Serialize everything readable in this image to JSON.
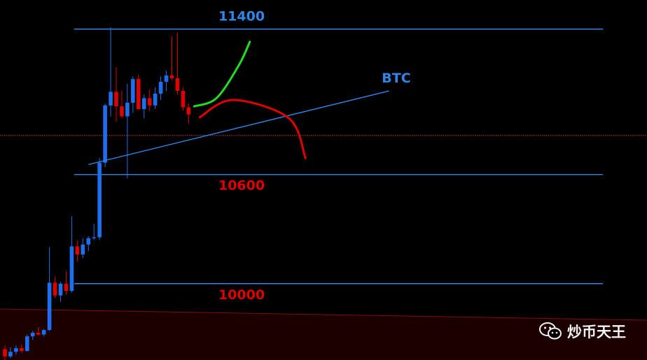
{
  "chart_data": {
    "type": "candlestick",
    "title": "BTC",
    "colors": {
      "background": "#000000",
      "up": "#1e6ff0",
      "down": "#e00000",
      "level_line": "#2f86e8",
      "trendline": "#2f86e8",
      "current_price_line": "#c0392b",
      "bull_scenario": "#22dd22",
      "bear_scenario": "#e00000",
      "title": "#2f86e8",
      "resistance_label": "#2f86e8",
      "support_label": "#e00000"
    },
    "price_range": [
      9580,
      11560
    ],
    "current_price": 10815,
    "levels": [
      {
        "price": 11400,
        "label": "11400",
        "role": "resistance"
      },
      {
        "price": 10600,
        "label": "10600",
        "role": "support"
      },
      {
        "price": 10000,
        "label": "10000",
        "role": "support"
      }
    ],
    "candles": [
      {
        "o": 9640,
        "h": 9660,
        "l": 9580,
        "c": 9600
      },
      {
        "o": 9600,
        "h": 9650,
        "l": 9590,
        "c": 9625
      },
      {
        "o": 9625,
        "h": 9660,
        "l": 9610,
        "c": 9645
      },
      {
        "o": 9645,
        "h": 9665,
        "l": 9620,
        "c": 9630
      },
      {
        "o": 9630,
        "h": 9720,
        "l": 9625,
        "c": 9710
      },
      {
        "o": 9710,
        "h": 9740,
        "l": 9690,
        "c": 9730
      },
      {
        "o": 9730,
        "h": 9760,
        "l": 9715,
        "c": 9720
      },
      {
        "o": 9720,
        "h": 9750,
        "l": 9710,
        "c": 9745
      },
      {
        "o": 9745,
        "h": 10200,
        "l": 9740,
        "c": 10005
      },
      {
        "o": 10005,
        "h": 10040,
        "l": 9920,
        "c": 9935
      },
      {
        "o": 9935,
        "h": 10010,
        "l": 9900,
        "c": 10000
      },
      {
        "o": 10000,
        "h": 10070,
        "l": 9940,
        "c": 9960
      },
      {
        "o": 9960,
        "h": 10370,
        "l": 9950,
        "c": 10205
      },
      {
        "o": 10205,
        "h": 10240,
        "l": 10120,
        "c": 10160
      },
      {
        "o": 10160,
        "h": 10250,
        "l": 10140,
        "c": 10215
      },
      {
        "o": 10215,
        "h": 10260,
        "l": 10180,
        "c": 10250
      },
      {
        "o": 10250,
        "h": 10330,
        "l": 10240,
        "c": 10255
      },
      {
        "o": 10255,
        "h": 10690,
        "l": 10240,
        "c": 10665
      },
      {
        "o": 10665,
        "h": 10990,
        "l": 10640,
        "c": 10980
      },
      {
        "o": 10980,
        "h": 11410,
        "l": 10920,
        "c": 11055
      },
      {
        "o": 11055,
        "h": 11190,
        "l": 10890,
        "c": 10975
      },
      {
        "o": 10975,
        "h": 11060,
        "l": 10910,
        "c": 10920
      },
      {
        "o": 10920,
        "h": 11100,
        "l": 10580,
        "c": 10995
      },
      {
        "o": 10995,
        "h": 11140,
        "l": 10940,
        "c": 11125
      },
      {
        "o": 11125,
        "h": 11150,
        "l": 10955,
        "c": 10960
      },
      {
        "o": 10960,
        "h": 11040,
        "l": 10910,
        "c": 11020
      },
      {
        "o": 11020,
        "h": 11070,
        "l": 10950,
        "c": 10980
      },
      {
        "o": 10980,
        "h": 11080,
        "l": 10960,
        "c": 11045
      },
      {
        "o": 11045,
        "h": 11140,
        "l": 11010,
        "c": 11110
      },
      {
        "o": 11110,
        "h": 11170,
        "l": 11060,
        "c": 11145
      },
      {
        "o": 11145,
        "h": 11360,
        "l": 11120,
        "c": 11130
      },
      {
        "o": 11130,
        "h": 11380,
        "l": 11040,
        "c": 11060
      },
      {
        "o": 11060,
        "h": 11080,
        "l": 10950,
        "c": 10970
      },
      {
        "o": 10970,
        "h": 10990,
        "l": 10880,
        "c": 10930
      }
    ],
    "trendline": {
      "from": {
        "candle": 15,
        "price": 10655
      },
      "to": {
        "candle": 69,
        "price": 11060
      }
    },
    "scenarios": [
      {
        "name": "bull",
        "points": [
          [
            34,
            10975
          ],
          [
            38,
            11020
          ],
          [
            42,
            11200
          ],
          [
            44,
            11330
          ]
        ]
      },
      {
        "name": "bear",
        "points": [
          [
            35,
            10915
          ],
          [
            41,
            11010
          ],
          [
            51,
            10910
          ],
          [
            54,
            10690
          ]
        ]
      }
    ]
  },
  "watermark": {
    "text": "炒币天王",
    "icon": "wechat-icon"
  }
}
